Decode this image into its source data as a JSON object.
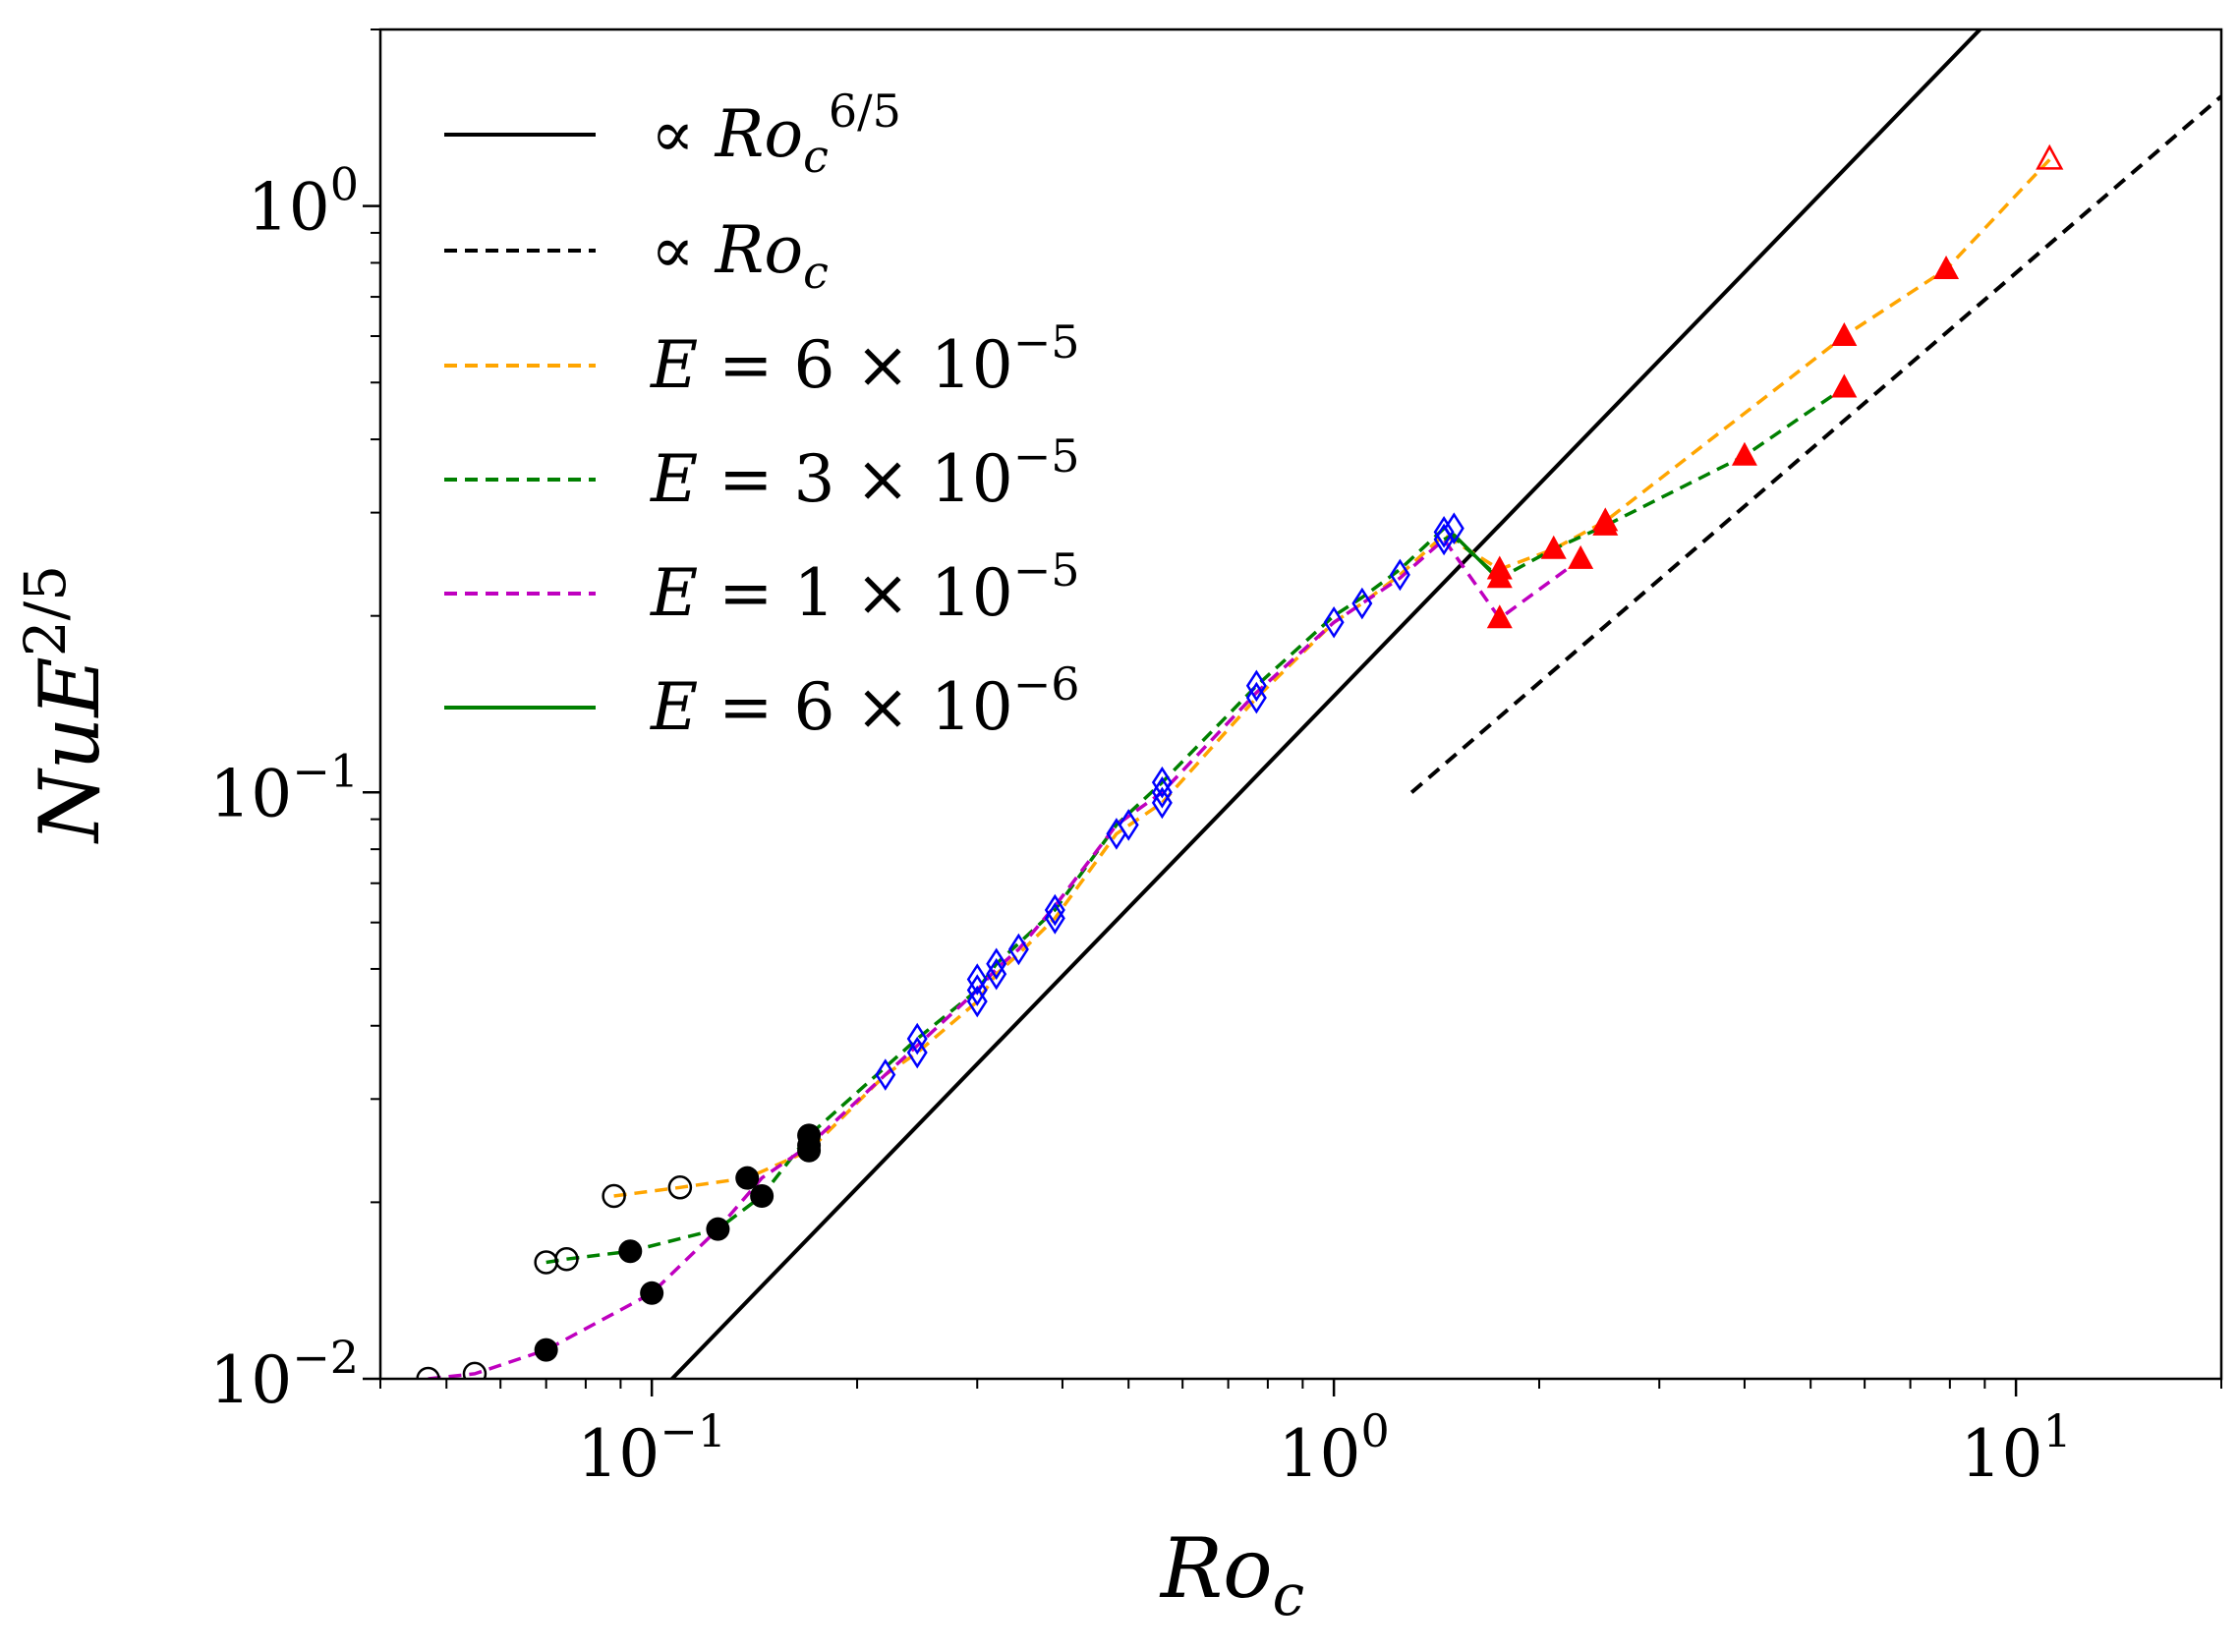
{
  "chart_data": {
    "type": "scatter",
    "scale": "log-log",
    "xlabel": {
      "base": "Ro",
      "sub": "c"
    },
    "ylabel": {
      "base": "NuE",
      "sup": "2/5"
    },
    "xlim": [
      0.04,
      20
    ],
    "ylim": [
      0.01,
      2
    ],
    "x_ticks": [
      {
        "value": 0.1,
        "base": "10",
        "exp": "−1"
      },
      {
        "value": 1,
        "base": "10",
        "exp": "0"
      },
      {
        "value": 10,
        "base": "10",
        "exp": "1"
      }
    ],
    "y_ticks": [
      {
        "value": 0.01,
        "base": "10",
        "exp": "−2"
      },
      {
        "value": 0.1,
        "base": "10",
        "exp": "−1"
      },
      {
        "value": 1,
        "base": "10",
        "exp": "0"
      }
    ],
    "legend": {
      "position": "top-left",
      "entries": [
        {
          "prefix": "∝ ",
          "math": "Ro",
          "sub": "c",
          "sup": "6/5",
          "color": "#000000",
          "style": "solid"
        },
        {
          "prefix": "∝ ",
          "math": "Ro",
          "sub": "c",
          "sup": "",
          "color": "#000000",
          "style": "dashed"
        },
        {
          "math": "E",
          "rest": " = 6 × 10",
          "sup": "−5",
          "color": "#FFA500",
          "style": "dashed"
        },
        {
          "math": "E",
          "rest": " = 3 × 10",
          "sup": "−5",
          "color": "#008000",
          "style": "dashed"
        },
        {
          "math": "E",
          "rest": " = 1 × 10",
          "sup": "−5",
          "color": "#BF00BF",
          "style": "dashed"
        },
        {
          "math": "E",
          "rest": " = 6 × 10",
          "sup": "−6",
          "color": "#008000",
          "style": "solid"
        }
      ]
    },
    "reference_lines": [
      {
        "name": "Ro_c^(6/5)",
        "exponent": 1.2,
        "coef": 0.146,
        "x_range": [
          0.1,
          20
        ],
        "color": "#000000",
        "style": "solid"
      },
      {
        "name": "Ro_c",
        "exponent": 1.0,
        "coef": 0.0769,
        "x_range": [
          1.3,
          20
        ],
        "color": "#000000",
        "style": "dashed"
      }
    ],
    "series": [
      {
        "name": "E = 6 × 10^-5",
        "color": "#FFA500",
        "style": "dashed",
        "x": [
          0.088,
          0.11,
          0.138,
          0.17,
          0.22,
          0.245,
          0.3,
          0.32,
          0.345,
          0.39,
          0.48,
          0.56,
          0.77,
          1.0,
          1.1,
          1.25,
          1.45,
          1.75,
          2.1,
          2.5,
          5.6,
          7.9,
          11.2
        ],
        "y": [
          0.0205,
          0.0212,
          0.022,
          0.0245,
          0.033,
          0.036,
          0.044,
          0.049,
          0.053,
          0.061,
          0.085,
          0.096,
          0.145,
          0.195,
          0.21,
          0.235,
          0.275,
          0.24,
          0.26,
          0.29,
          0.6,
          0.78,
          1.2
        ]
      },
      {
        "name": "E = 3 × 10^-5",
        "color": "#008000",
        "style": "dashed",
        "x": [
          0.07,
          0.075,
          0.093,
          0.125,
          0.145,
          0.17,
          0.22,
          0.245,
          0.3,
          0.32,
          0.39,
          0.48,
          0.56,
          0.77,
          1.0,
          1.1,
          1.25,
          1.45,
          1.75,
          2.1,
          2.5,
          4.0,
          5.6
        ],
        "y": [
          0.0158,
          0.016,
          0.0165,
          0.018,
          0.0205,
          0.026,
          0.034,
          0.038,
          0.046,
          0.051,
          0.063,
          0.088,
          0.104,
          0.152,
          0.2,
          0.215,
          0.24,
          0.282,
          0.232,
          0.26,
          0.285,
          0.375,
          0.49
        ]
      },
      {
        "name": "E = 1 × 10^-5",
        "color": "#BF00BF",
        "style": "dashed",
        "x": [
          0.047,
          0.055,
          0.07,
          0.1,
          0.125,
          0.145,
          0.17,
          0.22,
          0.245,
          0.3,
          0.32,
          0.345,
          0.39,
          0.48,
          0.56,
          0.77,
          1.0,
          1.1,
          1.25,
          1.45,
          1.75,
          2.3
        ],
        "y": [
          0.01,
          0.0102,
          0.0112,
          0.014,
          0.018,
          0.022,
          0.025,
          0.033,
          0.037,
          0.046,
          0.05,
          0.054,
          0.064,
          0.088,
          0.1,
          0.148,
          0.195,
          0.21,
          0.232,
          0.27,
          0.198,
          0.25
        ]
      },
      {
        "name": "E = 6 × 10^-6",
        "color": "#008000",
        "style": "solid",
        "x": [
          1.45,
          1.5,
          1.75
        ],
        "y": [
          0.27,
          0.275,
          0.23
        ]
      }
    ],
    "markers": [
      {
        "kind": "open-circle",
        "color": "#000000",
        "x": [
          0.047,
          0.055,
          0.07,
          0.075,
          0.088,
          0.11
        ],
        "y": [
          0.01,
          0.0102,
          0.0158,
          0.016,
          0.0205,
          0.0212
        ]
      },
      {
        "kind": "filled-circle",
        "color": "#000000",
        "x": [
          0.07,
          0.093,
          0.1,
          0.125,
          0.138,
          0.145,
          0.17,
          0.17,
          0.17
        ],
        "y": [
          0.0112,
          0.0165,
          0.014,
          0.018,
          0.022,
          0.0205,
          0.0245,
          0.025,
          0.026
        ]
      },
      {
        "kind": "open-diamond",
        "color": "#0000FF",
        "x": [
          0.22,
          0.245,
          0.245,
          0.3,
          0.3,
          0.3,
          0.32,
          0.32,
          0.345,
          0.39,
          0.39,
          0.48,
          0.5,
          0.56,
          0.56,
          0.56,
          0.77,
          0.77,
          1.0,
          1.1,
          1.25,
          1.45,
          1.45,
          1.5
        ],
        "y": [
          0.033,
          0.036,
          0.038,
          0.044,
          0.046,
          0.048,
          0.049,
          0.051,
          0.054,
          0.061,
          0.063,
          0.085,
          0.088,
          0.096,
          0.1,
          0.104,
          0.145,
          0.152,
          0.195,
          0.21,
          0.235,
          0.27,
          0.278,
          0.282
        ]
      },
      {
        "kind": "filled-triangle",
        "color": "#FF0000",
        "x": [
          1.75,
          1.75,
          1.75,
          2.1,
          2.3,
          2.5,
          2.5,
          4.0,
          5.6,
          5.6,
          7.9
        ],
        "y": [
          0.198,
          0.232,
          0.24,
          0.26,
          0.25,
          0.285,
          0.29,
          0.375,
          0.49,
          0.6,
          0.78
        ]
      },
      {
        "kind": "open-triangle",
        "color": "#FF0000",
        "x": [
          11.2
        ],
        "y": [
          1.2
        ]
      }
    ]
  }
}
